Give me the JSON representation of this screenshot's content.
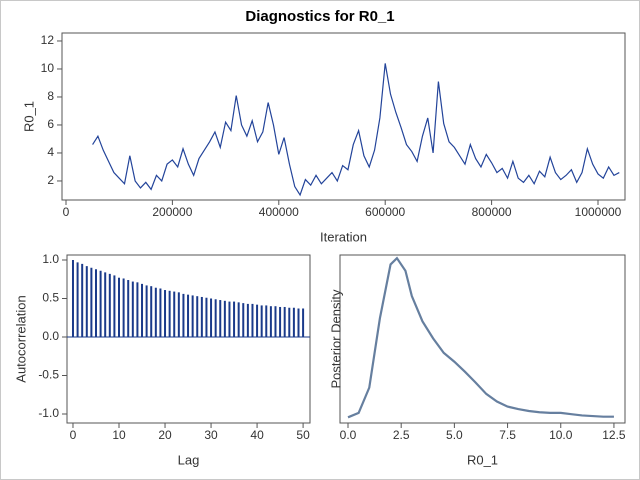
{
  "title": "Diagnostics for R0_1",
  "chart_data": [
    {
      "type": "line",
      "xlabel": "Iteration",
      "ylabel": "R0_1",
      "color": "#23449a",
      "x": [
        50000,
        60000,
        70000,
        80000,
        90000,
        100000,
        110000,
        120000,
        130000,
        140000,
        150000,
        160000,
        170000,
        180000,
        190000,
        200000,
        210000,
        220000,
        230000,
        240000,
        250000,
        260000,
        270000,
        280000,
        290000,
        300000,
        310000,
        320000,
        330000,
        340000,
        350000,
        360000,
        370000,
        380000,
        390000,
        400000,
        410000,
        420000,
        430000,
        440000,
        450000,
        460000,
        470000,
        480000,
        490000,
        500000,
        510000,
        520000,
        530000,
        540000,
        550000,
        560000,
        570000,
        580000,
        590000,
        600000,
        610000,
        620000,
        630000,
        640000,
        650000,
        660000,
        670000,
        680000,
        690000,
        700000,
        710000,
        720000,
        730000,
        740000,
        750000,
        760000,
        770000,
        780000,
        790000,
        800000,
        810000,
        820000,
        830000,
        840000,
        850000,
        860000,
        870000,
        880000,
        890000,
        900000,
        910000,
        920000,
        930000,
        940000,
        950000,
        960000,
        970000,
        980000,
        990000,
        1000000,
        1010000,
        1020000,
        1030000,
        1040000
      ],
      "values": [
        4.6,
        5.2,
        4.2,
        3.4,
        2.6,
        2.2,
        1.8,
        3.8,
        2.0,
        1.5,
        1.9,
        1.4,
        2.4,
        2.0,
        3.2,
        3.5,
        3.0,
        4.3,
        3.2,
        2.4,
        3.6,
        4.2,
        4.8,
        5.5,
        4.4,
        6.2,
        5.6,
        8.1,
        6.0,
        5.2,
        6.3,
        4.8,
        5.5,
        7.6,
        6.0,
        3.9,
        5.1,
        3.2,
        1.6,
        1.0,
        2.1,
        1.7,
        2.4,
        1.8,
        2.2,
        2.6,
        2.0,
        3.1,
        2.8,
        4.6,
        5.6,
        3.8,
        3.0,
        4.2,
        6.5,
        10.4,
        8.2,
        6.9,
        5.8,
        4.6,
        4.1,
        3.4,
        5.2,
        6.5,
        4.0,
        9.1,
        6.1,
        4.8,
        4.4,
        3.8,
        3.2,
        4.6,
        3.6,
        3.0,
        3.9,
        3.3,
        2.6,
        2.9,
        2.2,
        3.4,
        2.2,
        1.9,
        2.4,
        1.8,
        2.7,
        2.3,
        3.7,
        2.6,
        2.1,
        2.4,
        2.8,
        1.9,
        2.6,
        4.3,
        3.2,
        2.5,
        2.2,
        3.0,
        2.4,
        2.6
      ],
      "xlim": [
        -7500,
        1050750
      ],
      "ylim": [
        0.64,
        12.57
      ],
      "xticks": [
        0,
        200000,
        400000,
        600000,
        800000,
        1000000
      ],
      "yticks": [
        2,
        4,
        6,
        8,
        10,
        12
      ]
    },
    {
      "type": "bar",
      "xlabel": "Lag",
      "ylabel": "Autocorrelation",
      "color": "#1a3a8a",
      "x": [
        0,
        1,
        2,
        3,
        4,
        5,
        6,
        7,
        8,
        9,
        10,
        11,
        12,
        13,
        14,
        15,
        16,
        17,
        18,
        19,
        20,
        21,
        22,
        23,
        24,
        25,
        26,
        27,
        28,
        29,
        30,
        31,
        32,
        33,
        34,
        35,
        36,
        37,
        38,
        39,
        40,
        41,
        42,
        43,
        44,
        45,
        46,
        47,
        48,
        49,
        50
      ],
      "values": [
        1.0,
        0.97,
        0.95,
        0.92,
        0.9,
        0.88,
        0.86,
        0.84,
        0.82,
        0.8,
        0.77,
        0.76,
        0.74,
        0.72,
        0.71,
        0.69,
        0.67,
        0.66,
        0.64,
        0.63,
        0.61,
        0.6,
        0.59,
        0.58,
        0.56,
        0.55,
        0.54,
        0.53,
        0.52,
        0.51,
        0.5,
        0.49,
        0.48,
        0.47,
        0.46,
        0.46,
        0.45,
        0.44,
        0.43,
        0.43,
        0.42,
        0.41,
        0.41,
        0.4,
        0.4,
        0.39,
        0.39,
        0.38,
        0.38,
        0.37,
        0.37
      ],
      "xlim": [
        -1.3,
        51.5
      ],
      "ylim": [
        -1.117,
        1.065
      ],
      "xticks": [
        0,
        10,
        20,
        30,
        40,
        50
      ],
      "yticks": [
        {
          "value": -1,
          "label": "-1.0"
        },
        -0.5,
        {
          "value": 0,
          "label": "0.0"
        },
        0.5,
        {
          "value": 1,
          "label": "1.0"
        }
      ]
    },
    {
      "type": "line",
      "xlabel": "R0_1",
      "ylabel": "Posterior Density",
      "color": "#667f9f",
      "x": [
        0,
        0.5,
        1.0,
        1.5,
        2.0,
        2.3,
        2.7,
        3.0,
        3.5,
        4.0,
        4.5,
        5.0,
        5.5,
        6.0,
        6.5,
        7.0,
        7.5,
        8.0,
        8.5,
        9.0,
        9.5,
        10.0,
        10.5,
        11.0,
        11.5,
        12.0,
        12.5
      ],
      "values": [
        0.003,
        0.01,
        0.05,
        0.16,
        0.245,
        0.255,
        0.235,
        0.195,
        0.155,
        0.128,
        0.105,
        0.091,
        0.075,
        0.058,
        0.04,
        0.028,
        0.02,
        0.016,
        0.013,
        0.011,
        0.01,
        0.01,
        0.008,
        0.006,
        0.005,
        0.004,
        0.004
      ],
      "xlim": [
        -0.376,
        13.02
      ],
      "ylim": [
        -0.006,
        0.26
      ],
      "xticks": [
        {
          "value": 0,
          "label": "0.0"
        },
        2.5,
        {
          "value": 5,
          "label": "5.0"
        },
        7.5,
        {
          "value": 10,
          "label": "10.0"
        },
        12.5
      ]
    }
  ]
}
